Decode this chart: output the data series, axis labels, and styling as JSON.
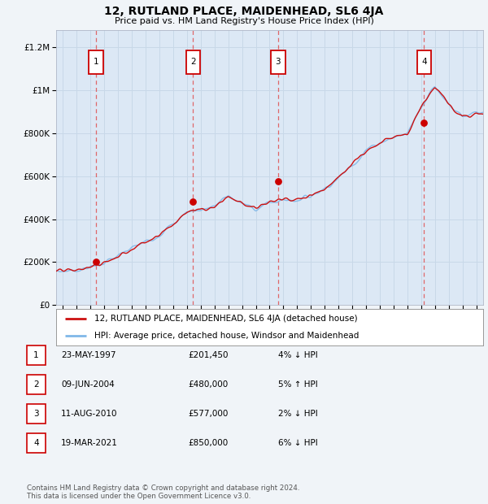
{
  "title": "12, RUTLAND PLACE, MAIDENHEAD, SL6 4JA",
  "subtitle": "Price paid vs. HM Land Registry's House Price Index (HPI)",
  "background_color": "#f0f4f8",
  "plot_bg_color": "#dce8f5",
  "sale_dates": [
    1997.38,
    2004.44,
    2010.61,
    2021.21
  ],
  "sale_prices": [
    201450,
    480000,
    577000,
    850000
  ],
  "sale_labels": [
    "1",
    "2",
    "3",
    "4"
  ],
  "vline_color": "#e05050",
  "sale_dot_color": "#cc0000",
  "hpi_line_color": "#80b8e8",
  "price_line_color": "#cc1111",
  "ylim": [
    0,
    1280000
  ],
  "xlim": [
    1994.5,
    2025.5
  ],
  "yticks": [
    0,
    200000,
    400000,
    600000,
    800000,
    1000000,
    1200000
  ],
  "ytick_labels": [
    "£0",
    "£200K",
    "£400K",
    "£600K",
    "£800K",
    "£1M",
    "£1.2M"
  ],
  "xtick_years": [
    1995,
    1996,
    1997,
    1998,
    1999,
    2000,
    2001,
    2002,
    2003,
    2004,
    2005,
    2006,
    2007,
    2008,
    2009,
    2010,
    2011,
    2012,
    2013,
    2014,
    2015,
    2016,
    2017,
    2018,
    2019,
    2020,
    2021,
    2022,
    2023,
    2024,
    2025
  ],
  "legend_entries": [
    "12, RUTLAND PLACE, MAIDENHEAD, SL6 4JA (detached house)",
    "HPI: Average price, detached house, Windsor and Maidenhead"
  ],
  "table_rows": [
    {
      "num": "1",
      "date": "23-MAY-1997",
      "price": "£201,450",
      "change": "4% ↓ HPI"
    },
    {
      "num": "2",
      "date": "09-JUN-2004",
      "price": "£480,000",
      "change": "5% ↑ HPI"
    },
    {
      "num": "3",
      "date": "11-AUG-2010",
      "price": "£577,000",
      "change": "2% ↓ HPI"
    },
    {
      "num": "4",
      "date": "19-MAR-2021",
      "price": "£850,000",
      "change": "6% ↓ HPI"
    }
  ],
  "footer": "Contains HM Land Registry data © Crown copyright and database right 2024.\nThis data is licensed under the Open Government Licence v3.0.",
  "grid_color": "#c8d8e8",
  "hpi_key_years": [
    1994.5,
    1995,
    1996,
    1997,
    1998,
    1999,
    2000,
    2001,
    2002,
    2003,
    2004,
    2005,
    2006,
    2007,
    2008,
    2009,
    2010,
    2011,
    2012,
    2013,
    2014,
    2015,
    2016,
    2017,
    2018,
    2019,
    2020,
    2021,
    2022,
    2023,
    2024,
    2025,
    2025.5
  ],
  "hpi_key_values": [
    155000,
    158000,
    163000,
    175000,
    198000,
    225000,
    265000,
    295000,
    330000,
    375000,
    435000,
    445000,
    460000,
    510000,
    470000,
    450000,
    475000,
    490000,
    490000,
    510000,
    545000,
    590000,
    655000,
    720000,
    760000,
    780000,
    800000,
    930000,
    1020000,
    940000,
    870000,
    890000,
    890000
  ]
}
